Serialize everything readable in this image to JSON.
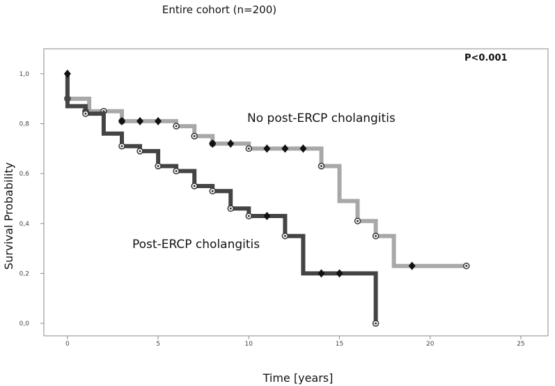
{
  "chart_data": {
    "type": "line",
    "subtype": "kaplan-meier-step",
    "title": "Entire cohort (n=200)",
    "xlabel": "Time [years]",
    "ylabel": "Survival Probability",
    "annotation": "P<0.001",
    "xlim": [
      -1.3,
      26.5
    ],
    "ylim": [
      -0.05,
      1.1
    ],
    "x_ticks": [
      0,
      5,
      10,
      15,
      20,
      25
    ],
    "x_tick_labels": [
      "0",
      "5",
      "10",
      "15",
      "20",
      "25"
    ],
    "y_ticks": [
      0.0,
      0.2,
      0.4,
      0.6,
      0.8,
      1.0
    ],
    "y_tick_labels": [
      "0,0",
      "0,2",
      "0,4",
      "0,6",
      "0,8",
      "1,0"
    ],
    "grid": false,
    "series": [
      {
        "name": "No post-ERCP cholangitis",
        "color": "#a8a8a8",
        "steps": [
          [
            0,
            1.0
          ],
          [
            0,
            0.9
          ],
          [
            1.2,
            0.9
          ],
          [
            1.2,
            0.85
          ],
          [
            3,
            0.85
          ],
          [
            3,
            0.81
          ],
          [
            6,
            0.81
          ],
          [
            6,
            0.79
          ],
          [
            7,
            0.79
          ],
          [
            7,
            0.75
          ],
          [
            8,
            0.75
          ],
          [
            8,
            0.72
          ],
          [
            10,
            0.72
          ],
          [
            10,
            0.7
          ],
          [
            14,
            0.7
          ],
          [
            14,
            0.63
          ],
          [
            15,
            0.63
          ],
          [
            15,
            0.49
          ],
          [
            16,
            0.49
          ],
          [
            16,
            0.41
          ],
          [
            17,
            0.41
          ],
          [
            17,
            0.35
          ],
          [
            18,
            0.35
          ],
          [
            18,
            0.23
          ],
          [
            22,
            0.23
          ]
        ],
        "events": [
          [
            0,
            0.9
          ],
          [
            1,
            0.85
          ],
          [
            2,
            0.85
          ],
          [
            3,
            0.81
          ],
          [
            6,
            0.79
          ],
          [
            7,
            0.75
          ],
          [
            8,
            0.72
          ],
          [
            10,
            0.7
          ],
          [
            14,
            0.63
          ],
          [
            16,
            0.41
          ],
          [
            17,
            0.35
          ],
          [
            22,
            0.23
          ]
        ],
        "censored": [
          [
            3,
            0.81
          ],
          [
            4,
            0.81
          ],
          [
            5,
            0.81
          ],
          [
            8,
            0.72
          ],
          [
            9,
            0.72
          ],
          [
            11,
            0.7
          ],
          [
            12,
            0.7
          ],
          [
            13,
            0.7
          ],
          [
            19,
            0.23
          ]
        ]
      },
      {
        "name": "Post-ERCP cholangitis",
        "color": "#444444",
        "steps": [
          [
            0,
            1.0
          ],
          [
            0,
            0.87
          ],
          [
            1,
            0.87
          ],
          [
            1,
            0.84
          ],
          [
            2,
            0.84
          ],
          [
            2,
            0.76
          ],
          [
            3,
            0.76
          ],
          [
            3,
            0.71
          ],
          [
            4,
            0.71
          ],
          [
            4,
            0.69
          ],
          [
            5,
            0.69
          ],
          [
            5,
            0.63
          ],
          [
            6,
            0.63
          ],
          [
            6,
            0.61
          ],
          [
            7,
            0.61
          ],
          [
            7,
            0.55
          ],
          [
            8,
            0.55
          ],
          [
            8,
            0.53
          ],
          [
            9,
            0.53
          ],
          [
            9,
            0.46
          ],
          [
            10,
            0.46
          ],
          [
            10,
            0.43
          ],
          [
            12,
            0.43
          ],
          [
            12,
            0.35
          ],
          [
            13,
            0.35
          ],
          [
            13,
            0.2
          ],
          [
            17,
            0.2
          ],
          [
            17,
            0.0
          ]
        ],
        "events": [
          [
            1,
            0.84
          ],
          [
            3,
            0.71
          ],
          [
            4,
            0.69
          ],
          [
            5,
            0.63
          ],
          [
            6,
            0.61
          ],
          [
            7,
            0.55
          ],
          [
            8,
            0.53
          ],
          [
            9,
            0.46
          ],
          [
            10,
            0.43
          ],
          [
            12,
            0.35
          ],
          [
            17,
            0.0
          ]
        ],
        "censored": [
          [
            0,
            1.0
          ],
          [
            11,
            0.43
          ],
          [
            14,
            0.2
          ],
          [
            15,
            0.2
          ]
        ]
      }
    ]
  }
}
